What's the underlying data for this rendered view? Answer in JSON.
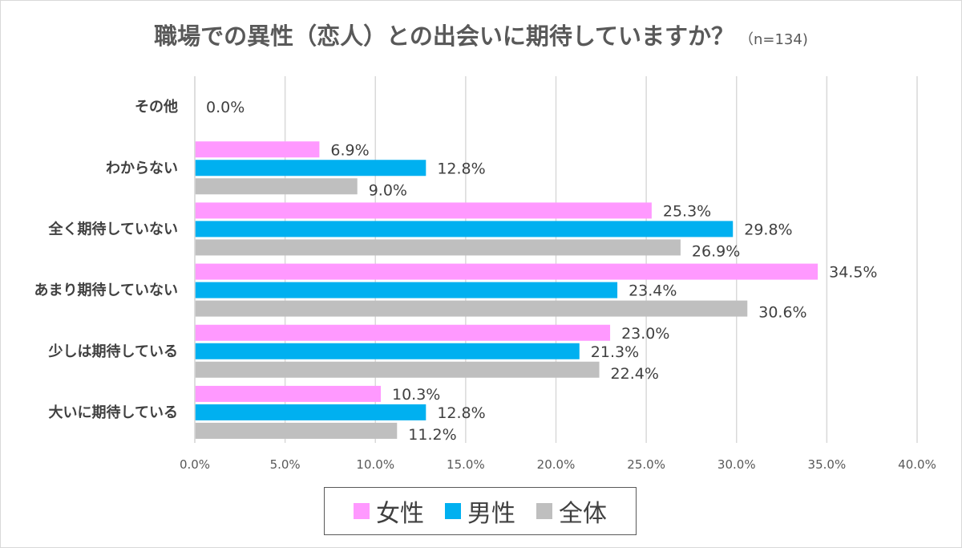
{
  "colors": {
    "female": "#ff99ff",
    "male": "#00b0f0",
    "total": "#bfbfbf",
    "grid": "#d9d9d9",
    "text": "#404040"
  },
  "chart_data": {
    "type": "bar",
    "orientation": "horizontal",
    "title": "職場での異性（恋人）との出会いに期待していますか？",
    "subtitle": "（n=134)",
    "categories": [
      "その他",
      "わからない",
      "全く期待していない",
      "あまり期待していない",
      "少しは期待している",
      "大いに期待している"
    ],
    "series": [
      {
        "name": "女性",
        "values": [
          null,
          6.9,
          25.3,
          34.5,
          23.0,
          10.3
        ]
      },
      {
        "name": "男性",
        "values": [
          null,
          12.8,
          29.8,
          23.4,
          21.3,
          12.8
        ]
      },
      {
        "name": "全体",
        "values": [
          0.0,
          9.0,
          26.9,
          30.6,
          22.4,
          11.2
        ]
      }
    ],
    "data_labels": [
      [
        "",
        "0.0%",
        ""
      ],
      [
        "6.9%",
        "12.8%",
        "9.0%"
      ],
      [
        "25.3%",
        "29.8%",
        "26.9%"
      ],
      [
        "34.5%",
        "23.4%",
        "30.6%"
      ],
      [
        "23.0%",
        "21.3%",
        "22.4%"
      ],
      [
        "10.3%",
        "12.8%",
        "11.2%"
      ]
    ],
    "xlim": [
      0,
      40
    ],
    "xticks": [
      "0.0%",
      "5.0%",
      "10.0%",
      "15.0%",
      "20.0%",
      "25.0%",
      "30.0%",
      "35.0%",
      "40.0%"
    ],
    "grid": true,
    "legend_position": "bottom"
  }
}
